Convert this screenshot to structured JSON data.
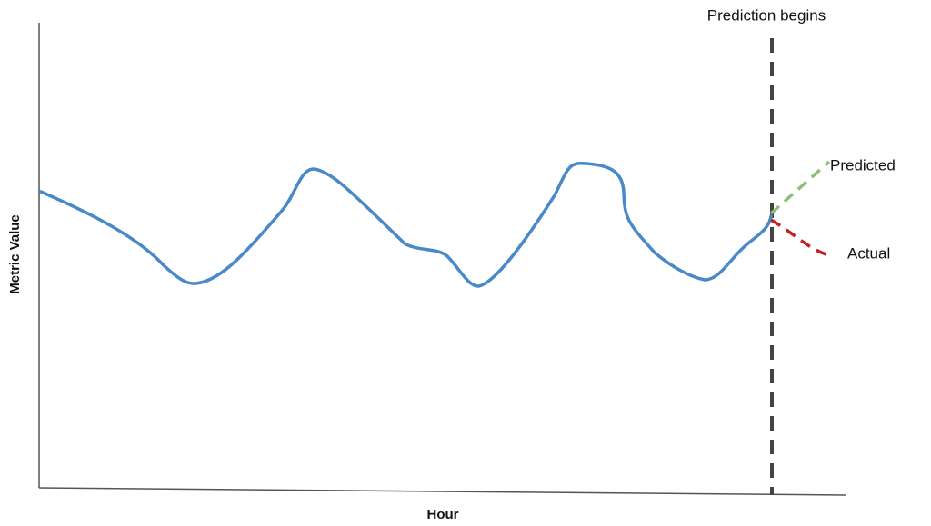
{
  "annotation": "Prediction begins",
  "legend": {
    "predicted": "Predicted",
    "actual": "Actual"
  },
  "axes": {
    "x_label": "Hour",
    "y_label": "Metric Value"
  }
}
